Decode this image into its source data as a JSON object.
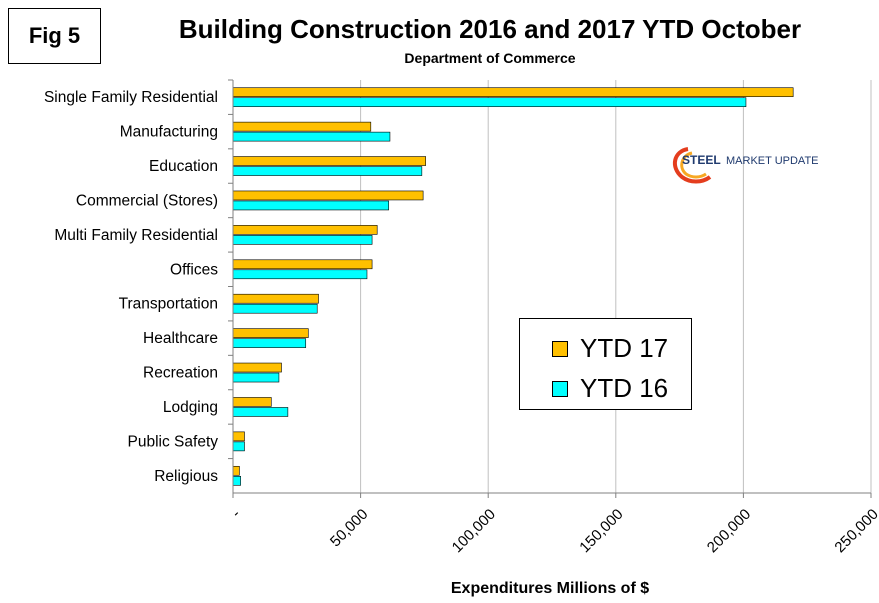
{
  "fig_label": "Fig 5",
  "chart_data": {
    "type": "bar",
    "orientation": "horizontal",
    "title": "Building Construction 2016 and 2017 YTD October",
    "subtitle": "Department of Commerce",
    "xlabel": "Expenditures Millions of $",
    "ylabel": "",
    "xlim": [
      0,
      250000
    ],
    "xticks": [
      0,
      50000,
      100000,
      150000,
      200000,
      250000
    ],
    "xtick_labels": [
      "-",
      "50,000",
      "100,000",
      "150,000",
      "200,000",
      "250,000"
    ],
    "grid": "vertical",
    "legend_position": "center-right",
    "categories": [
      "Single Family Residential",
      "Manufacturing",
      "Education",
      "Commercial (Stores)",
      "Multi Family Residential",
      "Offices",
      "Transportation",
      "Healthcare",
      "Recreation",
      "Lodging",
      "Public Safety",
      "Religious"
    ],
    "series": [
      {
        "name": "YTD 17",
        "color": "#FFC000",
        "values": [
          219500,
          54000,
          75500,
          74500,
          56500,
          54500,
          33500,
          29500,
          19000,
          15000,
          4500,
          2500
        ]
      },
      {
        "name": "YTD 16",
        "color": "#00FFFF",
        "values": [
          201000,
          61500,
          74000,
          61000,
          54500,
          52500,
          33000,
          28500,
          18000,
          21500,
          4500,
          3000
        ]
      }
    ]
  },
  "logo": {
    "text_bold": "STEEL",
    "text_rest": "MARKET UPDATE",
    "colors": {
      "primary": "#1F3A6E",
      "accent": "#E43D1E",
      "accent2": "#F7A823"
    }
  }
}
